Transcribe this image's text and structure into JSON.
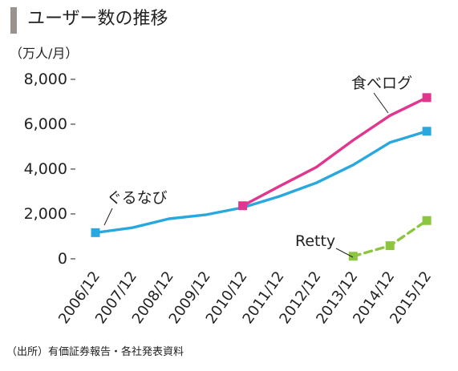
{
  "title": "ユーザー数の推移",
  "source_note": "（出所）有価証券報告・各社発表資料",
  "chart_data": {
    "type": "line",
    "title": "ユーザー数の推移",
    "ylabel": "（万人/月）",
    "xlabel": "",
    "ylim": [
      0,
      8000
    ],
    "yticks": [
      0,
      2000,
      4000,
      6000,
      8000
    ],
    "ytick_labels": [
      "0",
      "2,000",
      "4,000",
      "6,000",
      "8,000"
    ],
    "categories": [
      "2006/12",
      "2007/12",
      "2008/12",
      "2009/12",
      "2010/12",
      "2011/12",
      "2012/12",
      "2013/12",
      "2014/12",
      "2015/12"
    ],
    "grid": false,
    "legend": "direct-labels",
    "series": [
      {
        "name": "ぐるなび",
        "color": "#29a8df",
        "dash": "solid",
        "marker": "square",
        "marker_indices": [
          0,
          9
        ],
        "values": [
          1130,
          1350,
          1750,
          1930,
          2250,
          2750,
          3350,
          4150,
          5150,
          5650
        ]
      },
      {
        "name": "食べログ",
        "color": "#e0368d",
        "dash": "solid",
        "marker": "square",
        "marker_indices": [
          0,
          5
        ],
        "values": [
          null,
          null,
          null,
          null,
          2330,
          3200,
          4050,
          5250,
          6350,
          7150
        ]
      },
      {
        "name": "Retty",
        "color": "#8cc63f",
        "dash": "dashed",
        "marker": "square",
        "marker_indices": [
          0,
          1,
          2
        ],
        "values": [
          null,
          null,
          null,
          null,
          null,
          null,
          null,
          80,
          550,
          1670
        ]
      }
    ]
  }
}
